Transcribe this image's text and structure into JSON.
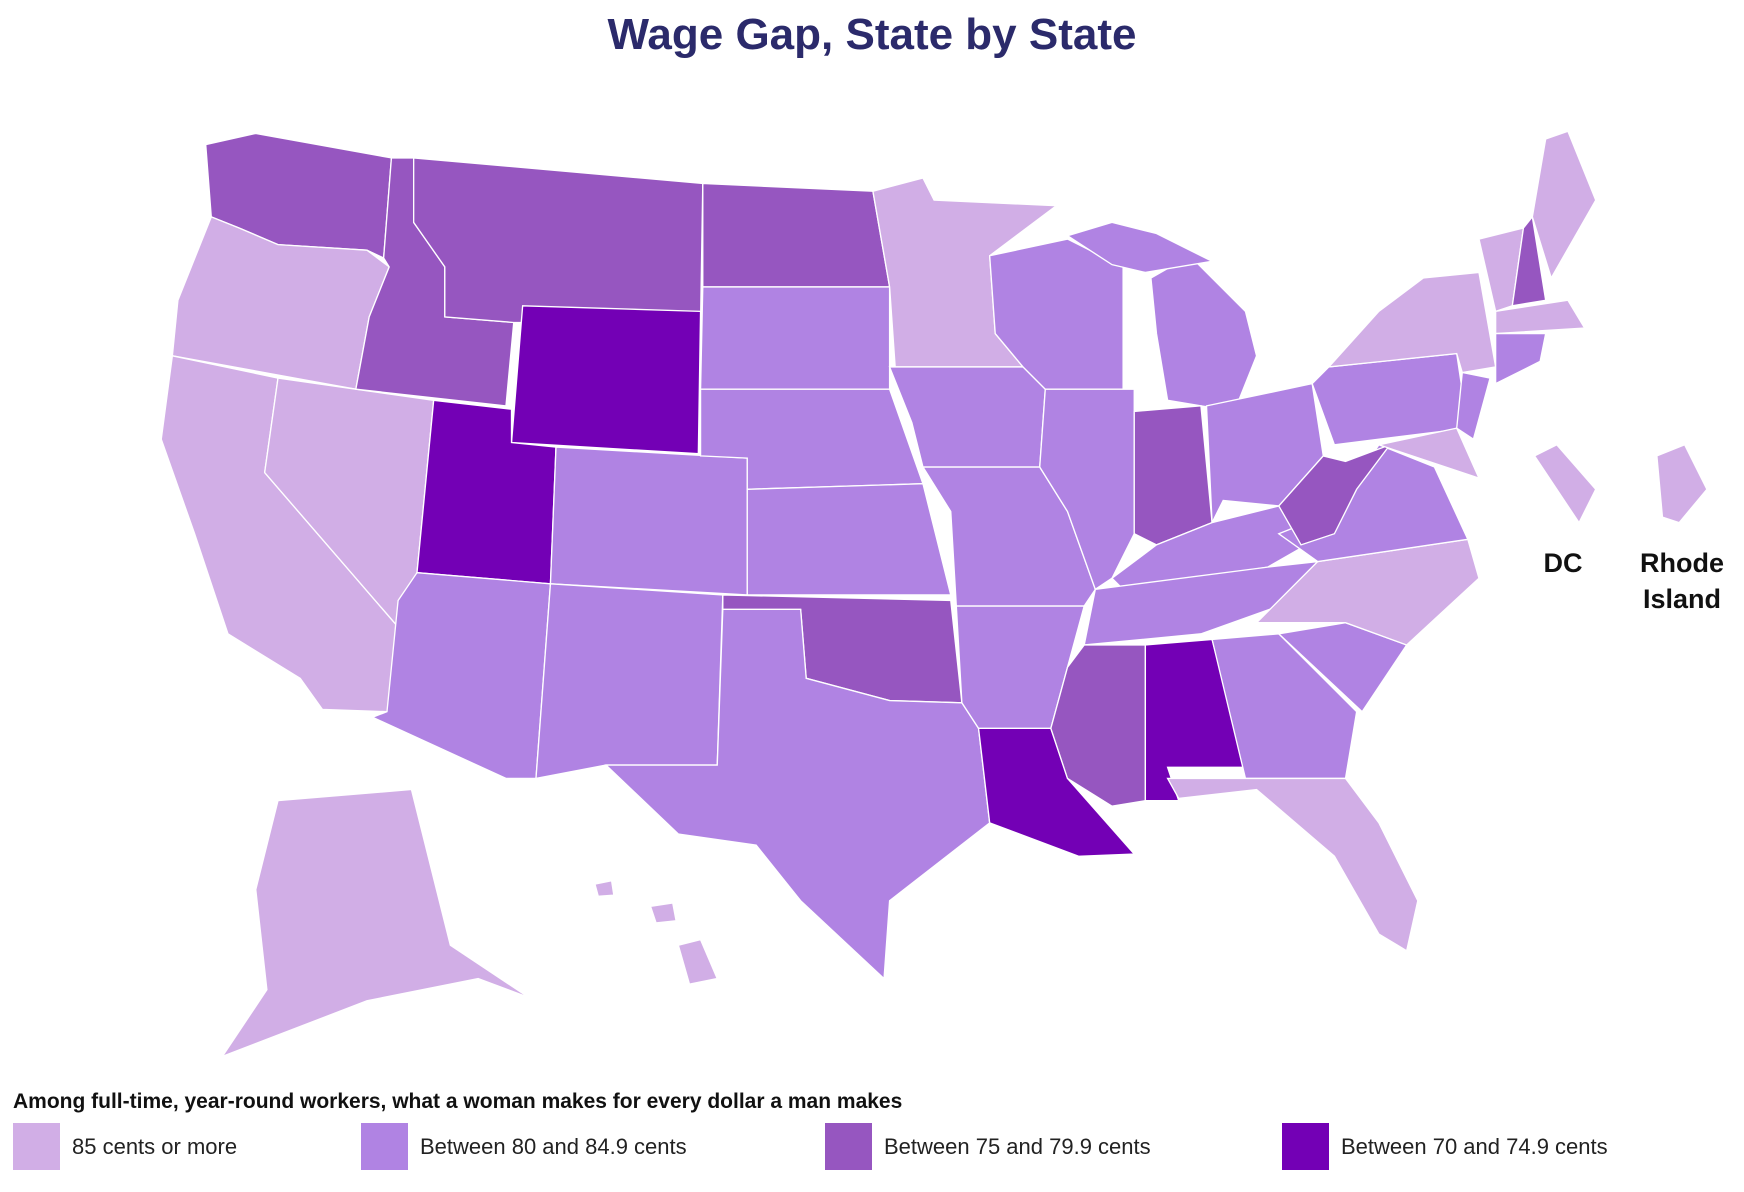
{
  "header": {
    "title": "Wage Gap, State by State"
  },
  "insets": [
    {
      "label": "DC"
    },
    {
      "label": "Rhode Island"
    }
  ],
  "legend": {
    "title": "Among full-time, year-round workers, what a woman makes for every dollar a man makes",
    "items": [
      {
        "label": "85 cents or more",
        "color": "#d1aee6"
      },
      {
        "label": "Between 80 and 84.9 cents",
        "color": "#b083e3"
      },
      {
        "label": "Between 75 and 79.9 cents",
        "color": "#9656c0"
      },
      {
        "label": "Between 70 and 74.9 cents",
        "color": "#7300b5"
      }
    ]
  }
}
